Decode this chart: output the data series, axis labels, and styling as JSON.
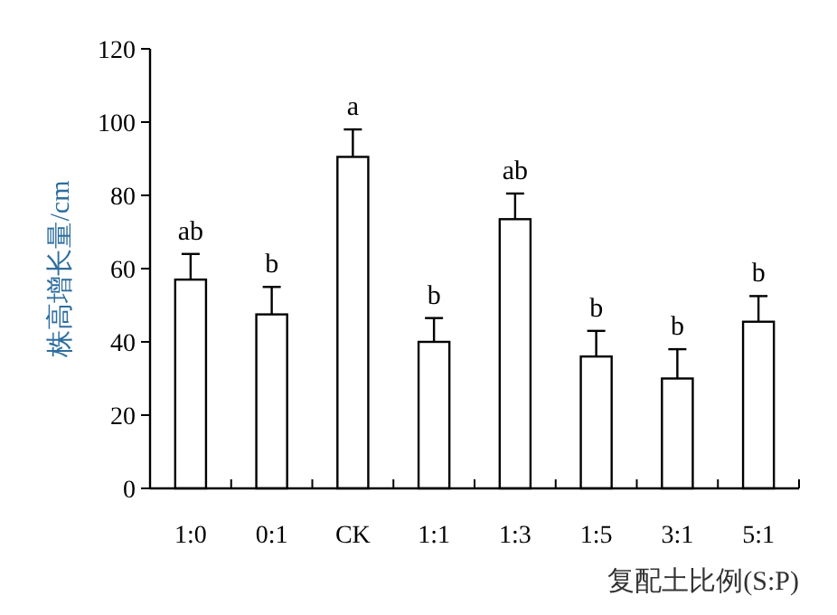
{
  "chart_data": {
    "type": "bar",
    "xlabel": "复配土比例(S:P)",
    "ylabel": "株高增长量/cm",
    "categories": [
      "1:0",
      "0:1",
      "CK",
      "1:1",
      "1:3",
      "1:5",
      "3:1",
      "5:1"
    ],
    "values": [
      57,
      47.5,
      90.5,
      40,
      73.5,
      36,
      30,
      45.5
    ],
    "errors": [
      7,
      7.5,
      7.5,
      6.5,
      7,
      7,
      8,
      7
    ],
    "color": "#ffffff",
    "ylim": [
      0,
      120
    ],
    "yticks": [
      0,
      20,
      40,
      60,
      80,
      100,
      120
    ],
    "grid": false,
    "annotations": [
      {
        "text": "ab",
        "x": "1:0",
        "y": 64
      },
      {
        "text": "b",
        "x": "0:1",
        "y": 55
      },
      {
        "text": "a",
        "x": "CK",
        "y": 98
      },
      {
        "text": "b",
        "x": "1:1",
        "y": 46.5
      },
      {
        "text": "ab",
        "x": "1:3",
        "y": 80.5
      },
      {
        "text": "b",
        "x": "1:5",
        "y": 43
      },
      {
        "text": "b",
        "x": "3:1",
        "y": 38
      },
      {
        "text": "b",
        "x": "5:1",
        "y": 52.5
      }
    ]
  }
}
